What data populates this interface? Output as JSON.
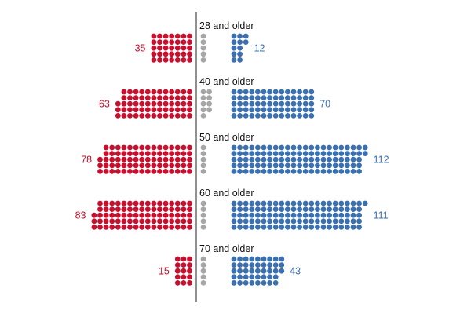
{
  "chart_data": {
    "type": "dot-matrix",
    "title": "",
    "xlabel": "",
    "ylabel": "",
    "legend": "none",
    "grid": false,
    "categories": [
      "28 and older",
      "40 and older",
      "50 and older",
      "60 and older",
      "70 and older"
    ],
    "series": [
      {
        "values": [
          35,
          63,
          78,
          83,
          15
        ],
        "color": "#c8102e"
      },
      {
        "values": [
          5,
          9,
          5,
          5,
          5
        ],
        "color": "#a6a6a6"
      },
      {
        "values": [
          12,
          70,
          112,
          111,
          43
        ],
        "color": "#3a6fb0"
      }
    ]
  }
}
